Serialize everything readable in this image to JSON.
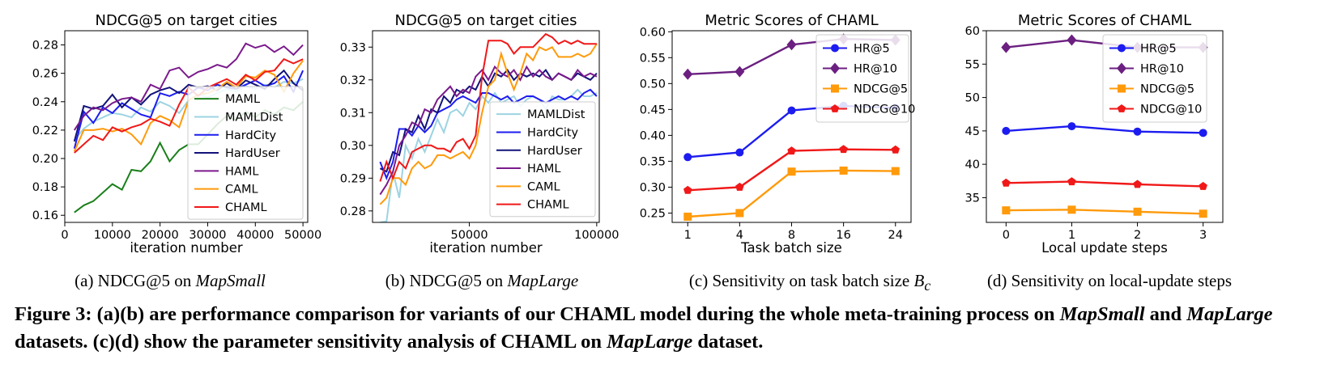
{
  "figure_caption": {
    "label": "Figure 3:",
    "parts": [
      {
        "text": " (a)(b) are performance comparison for variants of our CHAML model during the whole meta-training process on "
      },
      {
        "text": "MapSmall",
        "italic": true
      },
      {
        "text": " and "
      },
      {
        "text": "MapLarge",
        "italic": true
      },
      {
        "text": " datasets. (c)(d) show the parameter sensitivity analysis of CHAML on "
      },
      {
        "text": "MapLarge",
        "italic": true
      },
      {
        "text": " dataset."
      }
    ]
  },
  "subcaptions": [
    {
      "prefix": "(a)  NDCG@5 on ",
      "emph": "MapSmall",
      "suffix": ""
    },
    {
      "prefix": "(b)  NDCG@5 on ",
      "emph": "MapLarge",
      "suffix": ""
    },
    {
      "prefix": "(c)  Sensitivity on task batch size ",
      "emph": "B",
      "sub": "c",
      "suffix": ""
    },
    {
      "prefix": "(d)  Sensitivity on local-update steps",
      "emph": "",
      "suffix": ""
    }
  ],
  "colors": {
    "MAML": "#1a7f1a",
    "MAMLDist": "#9dd3e3",
    "HardCity": "#1c1cf0",
    "HardUser": "#12127a",
    "HAML": "#7a1a8c",
    "CAML": "#ff9a0a",
    "CHAML": "#f01818",
    "HR@5": "#1c1cf0",
    "HR@10": "#6b1f80",
    "NDCG@5": "#ff9a0a",
    "NDCG@10": "#f01818"
  },
  "chart_data": [
    {
      "type": "line",
      "title": "NDCG@5 on target cities",
      "xlabel": "iteration number",
      "ylabel": "",
      "xlim": [
        0,
        51000
      ],
      "ylim": [
        0.155,
        0.29
      ],
      "xticks": [
        0,
        10000,
        20000,
        30000,
        40000,
        50000
      ],
      "yticks": [
        0.16,
        0.18,
        0.2,
        0.22,
        0.24,
        0.26,
        0.28
      ],
      "ytick_labels": [
        "0.16",
        "0.18",
        "0.20",
        "0.22",
        "0.24",
        "0.26",
        "0.28"
      ],
      "legend": "center-right",
      "x": [
        2000,
        4000,
        6000,
        8000,
        10000,
        12000,
        14000,
        16000,
        18000,
        20000,
        22000,
        24000,
        26000,
        28000,
        30000,
        32000,
        34000,
        36000,
        38000,
        40000,
        42000,
        44000,
        46000,
        48000,
        50000
      ],
      "series": [
        {
          "name": "MAML",
          "values": [
            0.162,
            0.167,
            0.17,
            0.176,
            0.182,
            0.178,
            0.192,
            0.191,
            0.198,
            0.211,
            0.198,
            0.206,
            0.21,
            0.21,
            0.217,
            0.224,
            0.23,
            0.227,
            0.233,
            0.229,
            0.234,
            0.231,
            0.236,
            0.234,
            0.24
          ]
        },
        {
          "name": "MAMLDist",
          "values": [
            0.213,
            0.221,
            0.226,
            0.229,
            0.232,
            0.231,
            0.229,
            0.236,
            0.233,
            0.24,
            0.237,
            0.232,
            0.241,
            0.245,
            0.243,
            0.246,
            0.249,
            0.247,
            0.251,
            0.249,
            0.252,
            0.25,
            0.254,
            0.253,
            0.256
          ]
        },
        {
          "name": "HardCity",
          "values": [
            0.207,
            0.233,
            0.225,
            0.236,
            0.232,
            0.239,
            0.235,
            0.231,
            0.229,
            0.246,
            0.244,
            0.247,
            0.245,
            0.25,
            0.248,
            0.252,
            0.25,
            0.249,
            0.252,
            0.255,
            0.251,
            0.253,
            0.258,
            0.247,
            0.262
          ]
        },
        {
          "name": "HardUser",
          "values": [
            0.212,
            0.237,
            0.235,
            0.237,
            0.245,
            0.236,
            0.243,
            0.238,
            0.245,
            0.248,
            0.25,
            0.246,
            0.252,
            0.25,
            0.251,
            0.248,
            0.253,
            0.249,
            0.255,
            0.252,
            0.249,
            0.256,
            0.262,
            0.253,
            0.248
          ]
        },
        {
          "name": "HAML",
          "values": [
            0.22,
            0.23,
            0.236,
            0.234,
            0.239,
            0.242,
            0.243,
            0.24,
            0.252,
            0.249,
            0.262,
            0.264,
            0.257,
            0.261,
            0.263,
            0.266,
            0.264,
            0.27,
            0.281,
            0.278,
            0.28,
            0.275,
            0.279,
            0.273,
            0.28
          ]
        },
        {
          "name": "CAML",
          "values": [
            0.205,
            0.22,
            0.22,
            0.221,
            0.219,
            0.221,
            0.217,
            0.21,
            0.225,
            0.23,
            0.227,
            0.222,
            0.241,
            0.245,
            0.246,
            0.249,
            0.254,
            0.25,
            0.258,
            0.257,
            0.262,
            0.259,
            0.247,
            0.26,
            0.269
          ]
        },
        {
          "name": "CHAML",
          "values": [
            0.204,
            0.21,
            0.216,
            0.213,
            0.222,
            0.219,
            0.222,
            0.224,
            0.228,
            0.226,
            0.223,
            0.238,
            0.25,
            0.244,
            0.25,
            0.253,
            0.256,
            0.252,
            0.259,
            0.255,
            0.261,
            0.262,
            0.27,
            0.267,
            0.27
          ]
        }
      ]
    },
    {
      "type": "line",
      "title": "NDCG@5 on target cities",
      "xlabel": "iteration number",
      "ylabel": "",
      "xlim": [
        12000,
        101000
      ],
      "ylim": [
        0.2765,
        0.335
      ],
      "xticks": [
        50000,
        100000
      ],
      "yticks": [
        0.28,
        0.29,
        0.3,
        0.31,
        0.32,
        0.33
      ],
      "ytick_labels": [
        "0.28",
        "0.29",
        "0.30",
        "0.31",
        "0.32",
        "0.33"
      ],
      "legend": "lower-right",
      "x": [
        15000,
        17500,
        20000,
        22500,
        25000,
        27500,
        30000,
        32500,
        35000,
        37500,
        40000,
        42500,
        45000,
        47500,
        50000,
        52500,
        55000,
        57500,
        60000,
        62500,
        65000,
        67500,
        70000,
        72500,
        75000,
        77500,
        80000,
        82500,
        85000,
        87500,
        90000,
        92500,
        95000,
        97500,
        100000
      ],
      "series": [
        {
          "name": "MAMLDist",
          "values": [
            0.2765,
            0.2768,
            0.292,
            0.284,
            0.3,
            0.296,
            0.302,
            0.298,
            0.303,
            0.308,
            0.304,
            0.31,
            0.311,
            0.309,
            0.313,
            0.311,
            0.315,
            0.313,
            0.316,
            0.313,
            0.314,
            0.315,
            0.312,
            0.314,
            0.315,
            0.314,
            0.311,
            0.315,
            0.314,
            0.314,
            0.315,
            0.317,
            0.315,
            0.315,
            0.316
          ]
        },
        {
          "name": "HardCity",
          "values": [
            0.295,
            0.29,
            0.295,
            0.305,
            0.305,
            0.303,
            0.306,
            0.304,
            0.306,
            0.31,
            0.311,
            0.312,
            0.314,
            0.315,
            0.314,
            0.313,
            0.316,
            0.316,
            0.315,
            0.314,
            0.315,
            0.313,
            0.314,
            0.315,
            0.315,
            0.314,
            0.313,
            0.314,
            0.315,
            0.314,
            0.315,
            0.314,
            0.316,
            0.317,
            0.315
          ]
        },
        {
          "name": "HardUser",
          "values": [
            0.293,
            0.292,
            0.298,
            0.297,
            0.305,
            0.304,
            0.309,
            0.305,
            0.311,
            0.31,
            0.315,
            0.313,
            0.317,
            0.316,
            0.318,
            0.317,
            0.321,
            0.318,
            0.322,
            0.321,
            0.323,
            0.32,
            0.322,
            0.321,
            0.322,
            0.321,
            0.323,
            0.32,
            0.322,
            0.321,
            0.32,
            0.322,
            0.321,
            0.32,
            0.322
          ]
        },
        {
          "name": "HAML",
          "values": [
            0.285,
            0.288,
            0.292,
            0.3,
            0.303,
            0.307,
            0.306,
            0.311,
            0.31,
            0.314,
            0.316,
            0.318,
            0.315,
            0.317,
            0.316,
            0.321,
            0.323,
            0.32,
            0.324,
            0.322,
            0.321,
            0.323,
            0.32,
            0.324,
            0.321,
            0.323,
            0.321,
            0.32,
            0.322,
            0.321,
            0.32,
            0.323,
            0.321,
            0.322,
            0.321
          ]
        },
        {
          "name": "CAML",
          "values": [
            0.282,
            0.284,
            0.29,
            0.29,
            0.288,
            0.293,
            0.295,
            0.293,
            0.294,
            0.297,
            0.297,
            0.296,
            0.297,
            0.298,
            0.296,
            0.3,
            0.31,
            0.318,
            0.32,
            0.328,
            0.322,
            0.317,
            0.322,
            0.328,
            0.326,
            0.33,
            0.329,
            0.33,
            0.327,
            0.327,
            0.327,
            0.328,
            0.327,
            0.328,
            0.331
          ]
        },
        {
          "name": "CHAML",
          "values": [
            0.289,
            0.295,
            0.29,
            0.295,
            0.293,
            0.298,
            0.299,
            0.3,
            0.3,
            0.299,
            0.299,
            0.298,
            0.301,
            0.302,
            0.299,
            0.303,
            0.321,
            0.332,
            0.332,
            0.332,
            0.331,
            0.328,
            0.33,
            0.33,
            0.33,
            0.332,
            0.334,
            0.333,
            0.331,
            0.332,
            0.331,
            0.332,
            0.331,
            0.331,
            0.331
          ]
        }
      ]
    },
    {
      "type": "line",
      "title": "Metric Scores of CHAML",
      "xlabel": "Task batch size",
      "ylabel": "",
      "categories": [
        "1",
        "4",
        "8",
        "16",
        "24"
      ],
      "ylim": [
        0.232,
        0.602
      ],
      "yticks": [
        0.25,
        0.3,
        0.35,
        0.4,
        0.45,
        0.5,
        0.55,
        0.6
      ],
      "ytick_labels": [
        "0.25",
        "0.30",
        "0.35",
        "0.40",
        "0.45",
        "0.50",
        "0.55",
        "0.60"
      ],
      "legend": "top-right",
      "series": [
        {
          "name": "HR@5",
          "marker": "circle",
          "values": [
            0.358,
            0.367,
            0.448,
            0.457,
            0.453
          ]
        },
        {
          "name": "HR@10",
          "marker": "diamond",
          "values": [
            0.518,
            0.523,
            0.575,
            0.586,
            0.584
          ]
        },
        {
          "name": "NDCG@5",
          "marker": "square",
          "values": [
            0.243,
            0.25,
            0.33,
            0.332,
            0.331
          ]
        },
        {
          "name": "NDCG@10",
          "marker": "pentagon",
          "values": [
            0.294,
            0.3,
            0.37,
            0.373,
            0.372
          ]
        }
      ]
    },
    {
      "type": "line",
      "title": "Metric Scores of CHAML",
      "xlabel": "Local update steps",
      "ylabel": "",
      "categories": [
        "0",
        "1",
        "2",
        "3"
      ],
      "ylim": [
        0.313,
        0.6
      ],
      "yticks": [
        0.35,
        0.4,
        0.45,
        0.5,
        0.55,
        0.6
      ],
      "ytick_labels": [
        "0.35",
        "0.40",
        "0.45",
        "0.50",
        "0.55",
        "0.60"
      ],
      "legend": "top-right",
      "series": [
        {
          "name": "HR@5",
          "marker": "circle",
          "values": [
            0.45,
            0.457,
            0.449,
            0.447
          ]
        },
        {
          "name": "HR@10",
          "marker": "diamond",
          "values": [
            0.575,
            0.586,
            0.575,
            0.575
          ]
        },
        {
          "name": "NDCG@5",
          "marker": "square",
          "values": [
            0.331,
            0.332,
            0.329,
            0.326
          ]
        },
        {
          "name": "NDCG@10",
          "marker": "pentagon",
          "values": [
            0.372,
            0.374,
            0.37,
            0.367
          ]
        }
      ]
    }
  ]
}
